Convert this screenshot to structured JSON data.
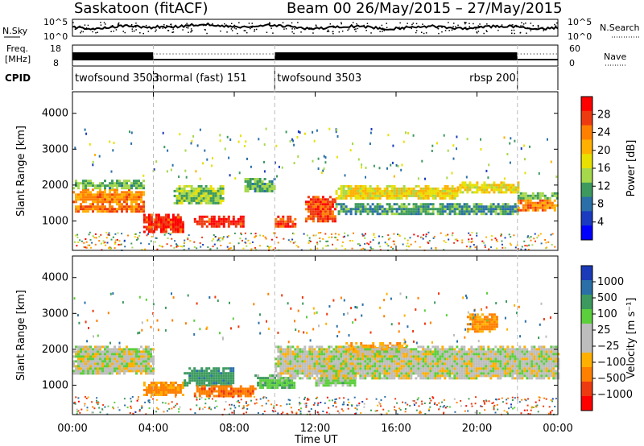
{
  "header": {
    "station": "Saskatoon  (fitACF)",
    "beam": "Beam 00",
    "date_range": "26/May/2015 – 27/May/2015"
  },
  "nsky": {
    "label": "N.Sky",
    "ticks_left": [
      "10^5",
      "10^0"
    ],
    "ticks_right": [
      "10^5",
      "10^0"
    ],
    "right_label": "N.Search"
  },
  "freq": {
    "label": "Freq.\n[MHz]",
    "ticks_left": [
      "18",
      "8"
    ],
    "ticks_right": [
      "60",
      "0"
    ],
    "right_label": "Nave"
  },
  "cpid": {
    "label": "CPID",
    "modes": [
      {
        "name": "twofsound 3503",
        "start_h": 0,
        "end_h": 4
      },
      {
        "name": "normal (fast) 151",
        "start_h": 4,
        "end_h": 10
      },
      {
        "name": "twofsound 3503",
        "start_h": 10,
        "end_h": 22
      },
      {
        "name": "rbsp 200",
        "start_h": 22,
        "end_h": 24
      }
    ]
  },
  "axes": {
    "ylabel": "Slant Range [km]",
    "xlabel": "Time UT",
    "x_ticks": [
      "00:00",
      "04:00",
      "08:00",
      "12:00",
      "16:00",
      "20:00",
      "00:00"
    ],
    "y_ticks": [
      1000,
      2000,
      3000,
      4000
    ],
    "xlim_hours": [
      0,
      24
    ],
    "ylim_km": [
      180,
      4600
    ],
    "mode_change_hours": [
      4,
      10,
      22
    ]
  },
  "colorbars": {
    "power": {
      "label": "Power [dB]",
      "ticks": [
        "28",
        "24",
        "20",
        "16",
        "12",
        "8",
        "4"
      ],
      "colors": [
        "#ff0000",
        "#ee3a10",
        "#ff7f00",
        "#ffb000",
        "#e8e000",
        "#a5d84a",
        "#3c9a5e",
        "#2a6fa8",
        "#1a3ac0",
        "#0000ff"
      ]
    },
    "velocity": {
      "label": "Velocity  [m s⁻¹]",
      "ticks": [
        "1000",
        "500",
        "100",
        "25",
        "−25",
        "−100",
        "−500",
        "−1000"
      ],
      "colors": [
        "#1a3ab8",
        "#2a6fa8",
        "#3c9a5e",
        "#5ccf3c",
        "#bdbdbd",
        "#bdbdbd",
        "#ffb000",
        "#ff7f00",
        "#ee3a10",
        "#ff0000"
      ]
    }
  },
  "chart_data": [
    {
      "type": "heatmap",
      "name": "power",
      "xlabel": "Time UT",
      "ylabel": "Slant Range [km]",
      "colorbar_label": "Power [dB]",
      "units_x": "hours UT",
      "units_y": "km",
      "bands": [
        {
          "x": [
            0.0,
            3.5
          ],
          "y": [
            1500,
            1900
          ],
          "value": 24
        },
        {
          "x": [
            0.0,
            3.5
          ],
          "y": [
            1250,
            1500
          ],
          "value": 26
        },
        {
          "x": [
            0.0,
            3.5
          ],
          "y": [
            1900,
            2150
          ],
          "value": 12
        },
        {
          "x": [
            3.5,
            5.5
          ],
          "y": [
            700,
            1200
          ],
          "value": 30
        },
        {
          "x": [
            5.0,
            7.5
          ],
          "y": [
            1500,
            2000
          ],
          "value": 14
        },
        {
          "x": [
            6.0,
            8.5
          ],
          "y": [
            850,
            1150
          ],
          "value": 30
        },
        {
          "x": [
            8.5,
            10.0
          ],
          "y": [
            1800,
            2200
          ],
          "value": 12
        },
        {
          "x": [
            10.0,
            11.0
          ],
          "y": [
            850,
            1150
          ],
          "value": 28
        },
        {
          "x": [
            11.5,
            13.0
          ],
          "y": [
            1000,
            1700
          ],
          "value": 28
        },
        {
          "x": [
            13.0,
            19.0
          ],
          "y": [
            1600,
            2000
          ],
          "value": 18
        },
        {
          "x": [
            13.0,
            22.0
          ],
          "y": [
            1200,
            1500
          ],
          "value": 10
        },
        {
          "x": [
            19.0,
            22.0
          ],
          "y": [
            1800,
            2100
          ],
          "value": 18
        },
        {
          "x": [
            22.0,
            24.0
          ],
          "y": [
            1300,
            1600
          ],
          "value": 24
        },
        {
          "x": [
            22.0,
            24.0
          ],
          "y": [
            1600,
            1800
          ],
          "value": 12
        }
      ]
    },
    {
      "type": "heatmap",
      "name": "velocity",
      "xlabel": "Time UT",
      "ylabel": "Slant Range [km]",
      "colorbar_label": "Velocity [m s⁻¹]",
      "units_x": "hours UT",
      "units_y": "km",
      "bands": [
        {
          "x": [
            0.0,
            4.0
          ],
          "y": [
            1300,
            2100
          ],
          "value": 0
        },
        {
          "x": [
            3.5,
            5.5
          ],
          "y": [
            700,
            1100
          ],
          "value": -200
        },
        {
          "x": [
            5.5,
            8.0
          ],
          "y": [
            1000,
            1500
          ],
          "value": 300
        },
        {
          "x": [
            6.0,
            9.0
          ],
          "y": [
            700,
            1000
          ],
          "value": -300
        },
        {
          "x": [
            9.0,
            11.0
          ],
          "y": [
            900,
            1300
          ],
          "value": 150
        },
        {
          "x": [
            12.0,
            14.0
          ],
          "y": [
            1000,
            1700
          ],
          "value": 80
        },
        {
          "x": [
            13.5,
            16.5
          ],
          "y": [
            1800,
            2200
          ],
          "value": -200
        },
        {
          "x": [
            10.0,
            24.0
          ],
          "y": [
            1200,
            2100
          ],
          "value": 0
        },
        {
          "x": [
            19.5,
            21.0
          ],
          "y": [
            2500,
            3000
          ],
          "value": -200
        }
      ]
    }
  ]
}
